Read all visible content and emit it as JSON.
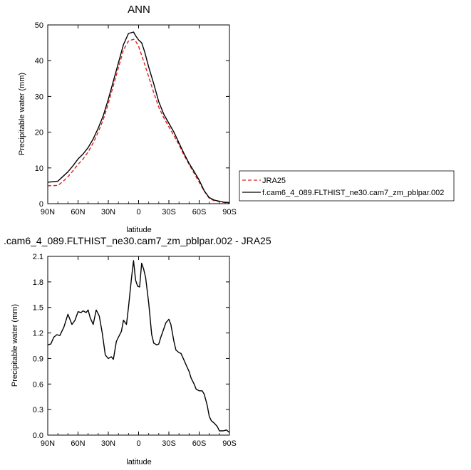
{
  "chart_data": [
    {
      "type": "line",
      "title": "ANN",
      "xlabel": "latitude",
      "ylabel": "Precipitable water (mm)",
      "xlim": [
        90,
        -90
      ],
      "ylim": [
        0,
        50
      ],
      "x_ticks": [
        90,
        60,
        30,
        0,
        -30,
        -60,
        -90
      ],
      "x_tick_labels": [
        "90N",
        "60N",
        "30N",
        "0",
        "30S",
        "60S",
        "90S"
      ],
      "y_ticks": [
        0,
        10,
        20,
        30,
        40,
        50
      ],
      "y_tick_labels": [
        "0",
        "10",
        "20",
        "30",
        "40",
        "50"
      ],
      "grid": false,
      "legend_position": "right",
      "series": [
        {
          "name": "JRA25",
          "color": "#e0201b",
          "dash": "dashed",
          "x": [
            90,
            80,
            75,
            70,
            65,
            60,
            55,
            50,
            45,
            40,
            35,
            30,
            25,
            20,
            15,
            10,
            5,
            3,
            0,
            -3,
            -6,
            -10,
            -15,
            -20,
            -25,
            -30,
            -35,
            -40,
            -45,
            -50,
            -55,
            -60,
            -65,
            -70,
            -75,
            -80,
            -85,
            -90
          ],
          "values": [
            5.0,
            5.1,
            6.2,
            7.5,
            9.2,
            11.0,
            12.5,
            14.5,
            17.0,
            20.0,
            23.5,
            28.0,
            33.0,
            38.0,
            43.0,
            45.5,
            46.0,
            45.5,
            44.0,
            41.5,
            39.0,
            35.5,
            31.0,
            27.0,
            24.0,
            21.5,
            19.0,
            16.5,
            13.5,
            11.0,
            8.5,
            6.0,
            3.5,
            1.5,
            0.8,
            0.6,
            0.3,
            0.2
          ]
        },
        {
          "name": "f.cam6_4_089.FLTHIST_ne30.cam7_zm_pblpar.002",
          "color": "#000000",
          "dash": "solid",
          "x": [
            90,
            80,
            75,
            70,
            65,
            60,
            55,
            50,
            45,
            40,
            35,
            30,
            25,
            20,
            15,
            10,
            5,
            3,
            0,
            -3,
            -6,
            -10,
            -15,
            -20,
            -25,
            -30,
            -35,
            -40,
            -45,
            -50,
            -55,
            -60,
            -65,
            -70,
            -75,
            -80,
            -85,
            -90
          ],
          "values": [
            6.0,
            6.3,
            7.6,
            8.9,
            10.6,
            12.5,
            13.9,
            15.7,
            18.1,
            21.1,
            24.6,
            29.2,
            34.3,
            39.4,
            44.5,
            47.6,
            48.0,
            47.0,
            45.8,
            45.0,
            42.5,
            38.2,
            33.5,
            28.5,
            25.0,
            22.5,
            20.0,
            17.0,
            14.0,
            11.3,
            9.0,
            6.6,
            3.6,
            1.7,
            1.0,
            0.7,
            0.4,
            0.3
          ]
        }
      ]
    },
    {
      "type": "line",
      "title": ".cam6_4_089.FLTHIST_ne30.cam7_zm_pblpar.002 - JRA25",
      "xlabel": "latitude",
      "ylabel": "Precipitable water (mm)",
      "xlim": [
        90,
        -90
      ],
      "ylim": [
        0,
        2.1
      ],
      "x_ticks": [
        90,
        60,
        30,
        0,
        -30,
        -60,
        -90
      ],
      "x_tick_labels": [
        "90N",
        "60N",
        "30N",
        "0",
        "30S",
        "60S",
        "90S"
      ],
      "y_ticks": [
        0,
        0.3,
        0.6,
        0.9,
        1.2,
        1.5,
        1.8,
        2.1
      ],
      "y_tick_labels": [
        "0.0",
        "0.3",
        "0.6",
        "0.9",
        "1.2",
        "1.5",
        "1.8",
        "2.1"
      ],
      "grid": false,
      "series": [
        {
          "color": "#000000",
          "x": [
            90,
            87,
            84,
            81,
            78,
            74,
            70,
            66,
            63,
            60,
            57,
            55,
            52,
            50,
            48,
            45,
            42,
            39,
            36,
            33,
            30,
            27,
            25,
            22,
            20,
            17,
            15,
            12,
            10,
            7,
            5,
            3,
            1,
            -1,
            -3,
            -5,
            -7,
            -10,
            -13,
            -15,
            -18,
            -20,
            -22,
            -25,
            -27,
            -30,
            -32,
            -35,
            -37,
            -40,
            -42,
            -45,
            -48,
            -50,
            -52,
            -55,
            -57,
            -60,
            -63,
            -65,
            -68,
            -70,
            -72,
            -75,
            -78,
            -80,
            -84,
            -87,
            -90
          ],
          "values": [
            1.06,
            1.07,
            1.15,
            1.18,
            1.17,
            1.27,
            1.42,
            1.3,
            1.35,
            1.45,
            1.44,
            1.46,
            1.44,
            1.47,
            1.38,
            1.3,
            1.47,
            1.4,
            1.2,
            0.94,
            0.9,
            0.92,
            0.89,
            1.1,
            1.15,
            1.22,
            1.35,
            1.3,
            1.5,
            1.85,
            2.05,
            1.82,
            1.75,
            1.74,
            2.02,
            1.95,
            1.85,
            1.55,
            1.18,
            1.08,
            1.06,
            1.07,
            1.15,
            1.25,
            1.32,
            1.36,
            1.3,
            1.1,
            1.0,
            0.97,
            0.96,
            0.88,
            0.8,
            0.75,
            0.67,
            0.6,
            0.54,
            0.52,
            0.52,
            0.48,
            0.35,
            0.22,
            0.17,
            0.14,
            0.1,
            0.05,
            0.05,
            0.06,
            0.03
          ]
        }
      ]
    }
  ]
}
